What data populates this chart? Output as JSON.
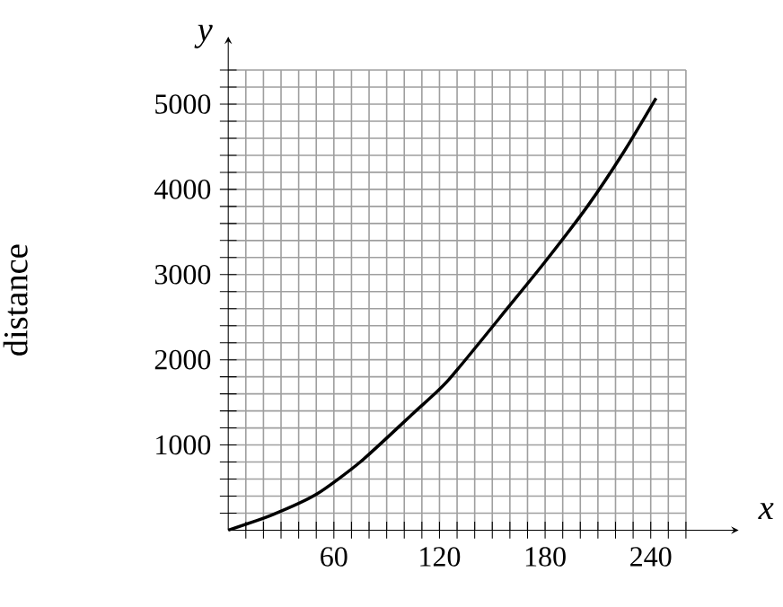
{
  "chart_data": {
    "type": "line",
    "xlabel": "x",
    "ylabel": "distance",
    "annotations": [
      "y"
    ],
    "x": [
      0,
      25,
      50,
      75,
      105,
      125,
      160,
      180,
      204,
      225,
      243
    ],
    "series": [
      {
        "color": "#000000",
        "values": [
          0,
          180,
          420,
          800,
          1370,
          1760,
          2640,
          3150,
          3800,
          4450,
          5070
        ]
      }
    ],
    "xlim": [
      0,
      260
    ],
    "ylim": [
      0,
      5400
    ],
    "xticks": [
      {
        "value": 10,
        "label": null
      },
      {
        "value": 20,
        "label": null
      },
      {
        "value": 30,
        "label": null
      },
      {
        "value": 40,
        "label": null
      },
      {
        "value": 50,
        "label": null
      },
      60,
      {
        "value": 70,
        "label": null
      },
      {
        "value": 80,
        "label": null
      },
      {
        "value": 90,
        "label": null
      },
      {
        "value": 100,
        "label": null
      },
      {
        "value": 110,
        "label": null
      },
      120,
      {
        "value": 130,
        "label": null
      },
      {
        "value": 140,
        "label": null
      },
      {
        "value": 150,
        "label": null
      },
      {
        "value": 160,
        "label": null
      },
      {
        "value": 170,
        "label": null
      },
      180,
      {
        "value": 190,
        "label": null
      },
      {
        "value": 200,
        "label": null
      },
      {
        "value": 210,
        "label": null
      },
      {
        "value": 220,
        "label": null
      },
      {
        "value": 230,
        "label": null
      },
      240,
      {
        "value": 250,
        "label": null
      },
      {
        "value": 260,
        "label": null
      }
    ],
    "yticks": [
      {
        "value": 200,
        "label": null
      },
      {
        "value": 400,
        "label": null
      },
      {
        "value": 600,
        "label": null
      },
      {
        "value": 800,
        "label": null
      },
      1000,
      {
        "value": 1200,
        "label": null
      },
      {
        "value": 1400,
        "label": null
      },
      {
        "value": 1600,
        "label": null
      },
      {
        "value": 1800,
        "label": null
      },
      2000,
      {
        "value": 2200,
        "label": null
      },
      {
        "value": 2400,
        "label": null
      },
      {
        "value": 2600,
        "label": null
      },
      {
        "value": 2800,
        "label": null
      },
      3000,
      {
        "value": 3200,
        "label": null
      },
      {
        "value": 3400,
        "label": null
      },
      {
        "value": 3600,
        "label": null
      },
      {
        "value": 3800,
        "label": null
      },
      4000,
      {
        "value": 4200,
        "label": null
      },
      {
        "value": 4400,
        "label": null
      },
      {
        "value": 4600,
        "label": null
      },
      {
        "value": 4800,
        "label": null
      },
      5000,
      {
        "value": 5200,
        "label": null
      },
      {
        "value": 5400,
        "label": null
      }
    ],
    "grid": true
  }
}
